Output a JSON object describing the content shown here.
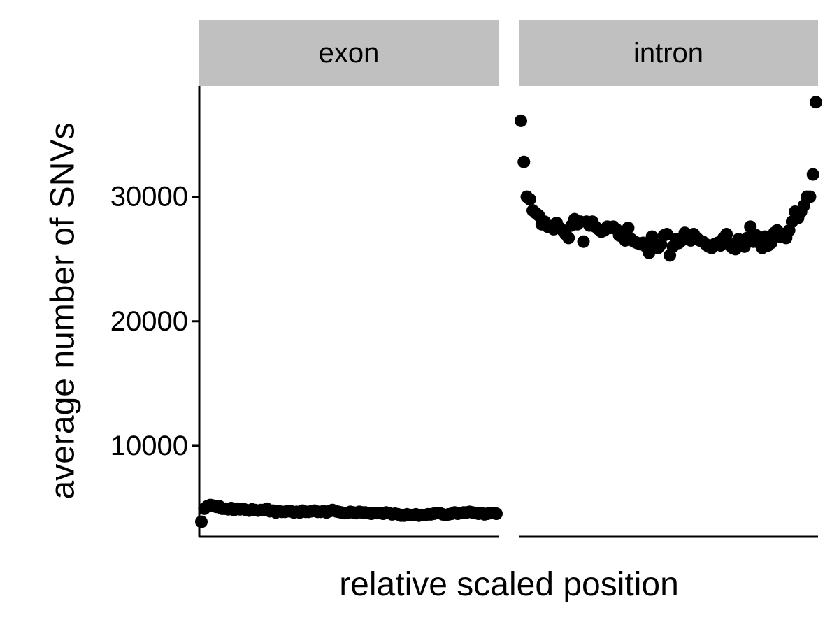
{
  "chart_data": {
    "type": "scatter",
    "xlabel": "relative scaled position",
    "ylabel": "average number of SNVs",
    "ylim": [
      2700,
      38900
    ],
    "yticks": [
      10000,
      20000,
      30000
    ],
    "grid": false,
    "legend": "none",
    "point_color": "#000000",
    "strip_color": "#c0c0c0",
    "facets": [
      {
        "name": "exon",
        "x": [
          1,
          2,
          3,
          4,
          5,
          6,
          7,
          8,
          9,
          10,
          11,
          12,
          13,
          14,
          15,
          16,
          17,
          18,
          19,
          20,
          21,
          22,
          23,
          24,
          25,
          26,
          27,
          28,
          29,
          30,
          31,
          32,
          33,
          34,
          35,
          36,
          37,
          38,
          39,
          40,
          41,
          42,
          43,
          44,
          45,
          46,
          47,
          48,
          49,
          50,
          51,
          52,
          53,
          54,
          55,
          56,
          57,
          58,
          59,
          60,
          61,
          62,
          63,
          64,
          65,
          66,
          67,
          68,
          69,
          70,
          71,
          72,
          73,
          74,
          75,
          76,
          77,
          78,
          79,
          80,
          81,
          82,
          83,
          84,
          85,
          86,
          87,
          88,
          89,
          90,
          91,
          92,
          93,
          94,
          95,
          96,
          97,
          98,
          99,
          100
        ],
        "y": [
          3900,
          4950,
          5150,
          5250,
          5200,
          5100,
          5150,
          4950,
          4950,
          4900,
          5000,
          4850,
          4950,
          4900,
          4950,
          4850,
          4800,
          4900,
          4850,
          4800,
          4850,
          4850,
          4950,
          4750,
          4800,
          4650,
          4750,
          4700,
          4700,
          4750,
          4750,
          4650,
          4700,
          4650,
          4800,
          4700,
          4700,
          4750,
          4800,
          4700,
          4700,
          4750,
          4650,
          4750,
          4850,
          4750,
          4700,
          4650,
          4600,
          4600,
          4700,
          4650,
          4600,
          4700,
          4650,
          4650,
          4600,
          4550,
          4600,
          4600,
          4600,
          4550,
          4650,
          4600,
          4500,
          4550,
          4500,
          4400,
          4400,
          4500,
          4450,
          4450,
          4500,
          4400,
          4450,
          4450,
          4500,
          4500,
          4550,
          4600,
          4600,
          4500,
          4450,
          4500,
          4550,
          4650,
          4550,
          4600,
          4650,
          4650,
          4700,
          4650,
          4600,
          4550,
          4600,
          4500,
          4550,
          4600,
          4600,
          4550
        ]
      },
      {
        "name": "intron",
        "x": [
          1,
          2,
          3,
          4,
          5,
          6,
          7,
          8,
          9,
          10,
          11,
          12,
          13,
          14,
          15,
          16,
          17,
          18,
          19,
          20,
          21,
          22,
          23,
          24,
          25,
          26,
          27,
          28,
          29,
          30,
          31,
          32,
          33,
          34,
          35,
          36,
          37,
          38,
          39,
          40,
          41,
          42,
          43,
          44,
          45,
          46,
          47,
          48,
          49,
          50,
          51,
          52,
          53,
          54,
          55,
          56,
          57,
          58,
          59,
          60,
          61,
          62,
          63,
          64,
          65,
          66,
          67,
          68,
          69,
          70,
          71,
          72,
          73,
          74,
          75,
          76,
          77,
          78,
          79,
          80,
          81,
          82,
          83,
          84,
          85,
          86,
          87,
          88,
          89,
          90,
          91,
          92,
          93,
          94,
          95,
          96,
          97,
          98,
          99,
          100
        ],
        "y": [
          36100,
          32800,
          30000,
          29800,
          28900,
          28700,
          28500,
          27800,
          28000,
          27600,
          27600,
          27400,
          27900,
          27500,
          27300,
          27000,
          26700,
          27700,
          28200,
          27800,
          28000,
          26400,
          28000,
          27700,
          28000,
          27600,
          27400,
          27200,
          27300,
          27600,
          27500,
          27600,
          27400,
          26900,
          26800,
          26500,
          27500,
          26600,
          26400,
          26300,
          26200,
          26300,
          26000,
          25500,
          26800,
          26000,
          25900,
          26200,
          26900,
          27000,
          25300,
          26000,
          26600,
          26300,
          26500,
          27100,
          26800,
          26500,
          27000,
          26700,
          26500,
          26400,
          26200,
          26000,
          25900,
          26200,
          26300,
          26100,
          26700,
          27000,
          26200,
          25900,
          25800,
          26600,
          26200,
          26000,
          26700,
          27600,
          26400,
          26900,
          26300,
          25900,
          26800,
          26100,
          26300,
          27100,
          27300,
          26800,
          27000,
          26700,
          27300,
          28000,
          28800,
          28300,
          28800,
          29300,
          30000,
          30000,
          31800,
          37600
        ]
      }
    ]
  }
}
